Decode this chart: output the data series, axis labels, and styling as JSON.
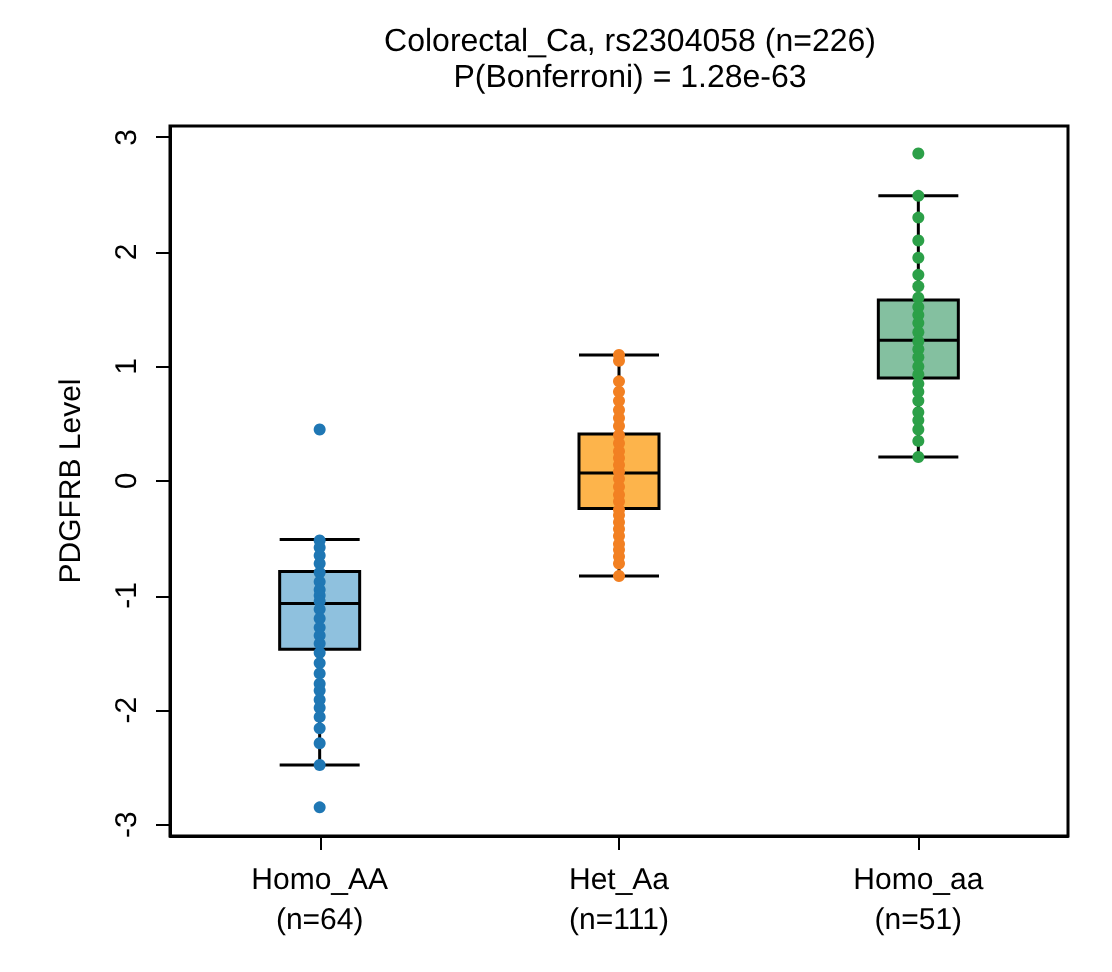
{
  "chart_data": {
    "type": "box",
    "title": "Colorectal_Ca, rs2304058 (n=226)",
    "subtitle": "P(Bonferroni) = 1.28e-63",
    "ylabel": "PDGFRB Level",
    "categories": [
      "Homo_AA\n(n=64)",
      "Het_Aa\n(n=111)",
      "Homo_aa\n(n=51)"
    ],
    "colors": [
      "#8fc1de",
      "#fdb44b",
      "#84c0a0"
    ],
    "boxes": [
      {
        "low": -2.48,
        "q1": -1.47,
        "median": -1.07,
        "q3": -0.79,
        "high": -0.51
      },
      {
        "low": -0.83,
        "q1": -0.24,
        "median": 0.07,
        "q3": 0.41,
        "high": 1.1
      },
      {
        "low": 0.21,
        "q1": 0.9,
        "median": 1.23,
        "q3": 1.58,
        "high": 2.49
      }
    ],
    "series": [
      {
        "type": "scatter",
        "color": "#1f77b4",
        "x": [
          "Homo_AA\n(n=64)",
          "Homo_AA\n(n=64)",
          "Homo_AA\n(n=64)",
          "Homo_AA\n(n=64)",
          "Homo_AA\n(n=64)",
          "Homo_AA\n(n=64)",
          "Homo_AA\n(n=64)",
          "Homo_AA\n(n=64)",
          "Homo_AA\n(n=64)",
          "Homo_AA\n(n=64)",
          "Homo_AA\n(n=64)",
          "Homo_AA\n(n=64)",
          "Homo_AA\n(n=64)",
          "Homo_AA\n(n=64)",
          "Homo_AA\n(n=64)",
          "Homo_AA\n(n=64)",
          "Homo_AA\n(n=64)",
          "Homo_AA\n(n=64)",
          "Homo_AA\n(n=64)",
          "Homo_AA\n(n=64)",
          "Homo_AA\n(n=64)",
          "Homo_AA\n(n=64)",
          "Homo_AA\n(n=64)",
          "Homo_AA\n(n=64)",
          "Homo_AA\n(n=64)",
          "Homo_AA\n(n=64)",
          "Homo_AA\n(n=64)"
        ],
        "values": [
          0.45,
          -0.52,
          -0.58,
          -0.65,
          -0.72,
          -0.8,
          -0.88,
          -0.95,
          -1.0,
          -1.05,
          -1.12,
          -1.2,
          -1.28,
          -1.35,
          -1.42,
          -1.5,
          -1.59,
          -1.68,
          -1.77,
          -1.83,
          -1.91,
          -1.98,
          -2.06,
          -2.16,
          -2.29,
          -2.48,
          -2.85
        ]
      },
      {
        "type": "scatter",
        "color": "#f28022",
        "x": [
          "Het_Aa\n(n=111)",
          "Het_Aa\n(n=111)",
          "Het_Aa\n(n=111)",
          "Het_Aa\n(n=111)",
          "Het_Aa\n(n=111)",
          "Het_Aa\n(n=111)",
          "Het_Aa\n(n=111)",
          "Het_Aa\n(n=111)",
          "Het_Aa\n(n=111)",
          "Het_Aa\n(n=111)",
          "Het_Aa\n(n=111)",
          "Het_Aa\n(n=111)",
          "Het_Aa\n(n=111)",
          "Het_Aa\n(n=111)",
          "Het_Aa\n(n=111)",
          "Het_Aa\n(n=111)",
          "Het_Aa\n(n=111)",
          "Het_Aa\n(n=111)",
          "Het_Aa\n(n=111)",
          "Het_Aa\n(n=111)",
          "Het_Aa\n(n=111)",
          "Het_Aa\n(n=111)",
          "Het_Aa\n(n=111)",
          "Het_Aa\n(n=111)",
          "Het_Aa\n(n=111)",
          "Het_Aa\n(n=111)",
          "Het_Aa\n(n=111)",
          "Het_Aa\n(n=111)"
        ],
        "values": [
          1.1,
          1.05,
          0.87,
          0.78,
          0.7,
          0.62,
          0.55,
          0.48,
          0.4,
          0.33,
          0.26,
          0.2,
          0.14,
          0.08,
          0.02,
          -0.05,
          -0.12,
          -0.18,
          -0.25,
          -0.3,
          -0.36,
          -0.42,
          -0.48,
          -0.55,
          -0.6,
          -0.66,
          -0.72,
          -0.83
        ]
      },
      {
        "type": "scatter",
        "color": "#2ca048",
        "x": [
          "Homo_aa\n(n=51)",
          "Homo_aa\n(n=51)",
          "Homo_aa\n(n=51)",
          "Homo_aa\n(n=51)",
          "Homo_aa\n(n=51)",
          "Homo_aa\n(n=51)",
          "Homo_aa\n(n=51)",
          "Homo_aa\n(n=51)",
          "Homo_aa\n(n=51)",
          "Homo_aa\n(n=51)",
          "Homo_aa\n(n=51)",
          "Homo_aa\n(n=51)",
          "Homo_aa\n(n=51)",
          "Homo_aa\n(n=51)",
          "Homo_aa\n(n=51)",
          "Homo_aa\n(n=51)",
          "Homo_aa\n(n=51)",
          "Homo_aa\n(n=51)",
          "Homo_aa\n(n=51)",
          "Homo_aa\n(n=51)",
          "Homo_aa\n(n=51)",
          "Homo_aa\n(n=51)",
          "Homo_aa\n(n=51)",
          "Homo_aa\n(n=51)",
          "Homo_aa\n(n=51)"
        ],
        "values": [
          2.86,
          2.49,
          2.3,
          2.1,
          1.95,
          1.8,
          1.7,
          1.6,
          1.52,
          1.45,
          1.38,
          1.3,
          1.22,
          1.15,
          1.08,
          1.0,
          0.93,
          0.85,
          0.78,
          0.7,
          0.6,
          0.53,
          0.45,
          0.35,
          0.21
        ]
      }
    ],
    "ylim": [
      -3.1,
      3.1
    ],
    "yticks": [
      -3,
      -2,
      -1,
      0,
      1,
      2,
      3
    ],
    "marker": "circle"
  }
}
